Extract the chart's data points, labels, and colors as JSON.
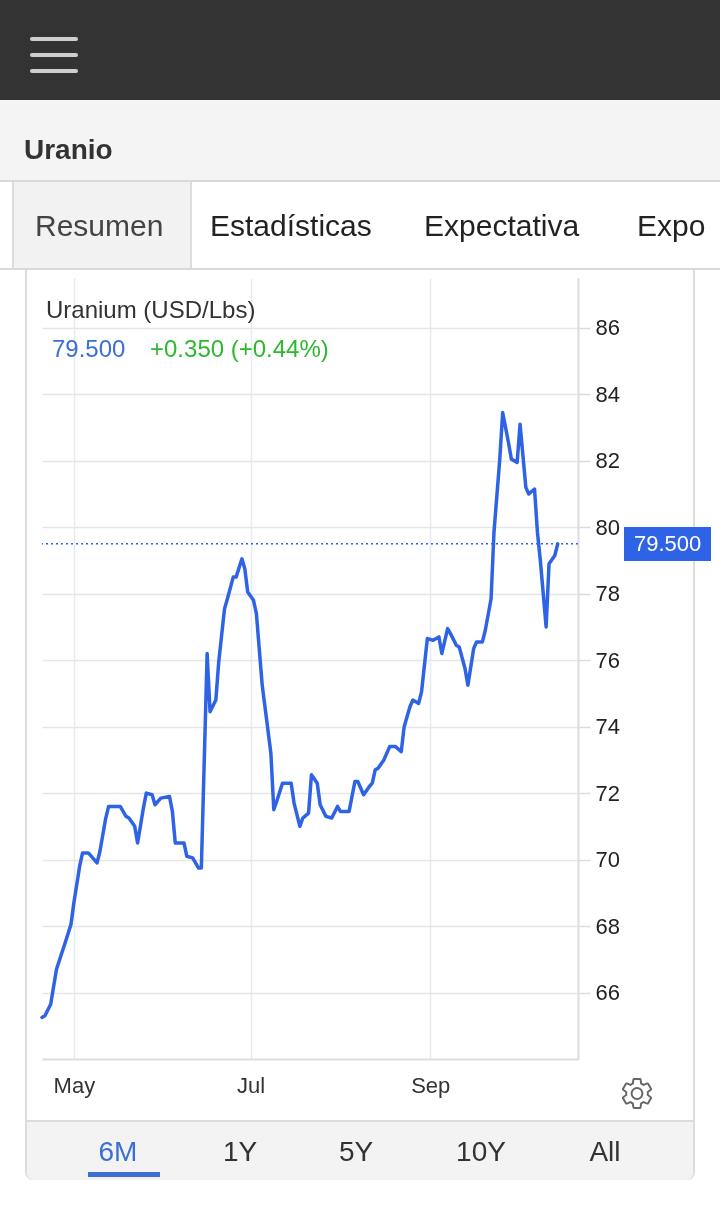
{
  "chart_data": {
    "type": "line",
    "title": "Uranium (USD/Lbs)",
    "annotations": [
      "Uranio",
      "Resumen",
      "Estadísticas",
      "Expectativa",
      "Expo",
      "79.500",
      "+0.350 (+0.44%)",
      "6M",
      "1Y",
      "5Y",
      "10Y",
      "All"
    ],
    "x": [
      "--04-20",
      "--04-21",
      "--04-23",
      "--04-25",
      "--04-28",
      "--04-30",
      "--05-01",
      "--05-03",
      "--05-04",
      "--05-06",
      "--05-09",
      "--05-10",
      "--05-12",
      "--05-13",
      "--05-17",
      "--05-19",
      "--05-20",
      "--05-22",
      "--05-23",
      "--05-25",
      "--05-26",
      "--05-28",
      "--05-29",
      "--05-31",
      "--06-03",
      "--06-04",
      "--06-05",
      "--06-08",
      "--06-09",
      "--06-11",
      "--06-13",
      "--06-14",
      "--06-16",
      "--06-17",
      "--06-19",
      "--06-20",
      "--06-22",
      "--06-23",
      "--06-25",
      "--06-26",
      "--06-28",
      "--06-29",
      "--06-30",
      "--07-02",
      "--07-03",
      "--07-05",
      "--07-08",
      "--07-09",
      "--07-10",
      "--07-12",
      "--07-15",
      "--07-16",
      "--07-18",
      "--07-19",
      "--07-21",
      "--07-22",
      "--07-24",
      "--07-25",
      "--07-27",
      "--07-29",
      "--07-31",
      "--08-01",
      "--08-04",
      "--08-06",
      "--08-07",
      "--08-09",
      "--08-11",
      "--08-12",
      "--08-13",
      "--08-14",
      "--08-16",
      "--08-18",
      "--08-20",
      "--08-22",
      "--08-23",
      "--08-25",
      "--08-26",
      "--08-28",
      "--08-29",
      "--08-31",
      "--09-02",
      "--09-04",
      "--09-05",
      "--09-07",
      "--09-08",
      "--09-10",
      "--09-11",
      "--09-13",
      "--09-14",
      "--09-16",
      "--09-17",
      "--09-19",
      "--09-20",
      "--09-22",
      "--09-23",
      "--09-25",
      "--09-26",
      "--09-28",
      "--09-29",
      "--10-01",
      "--10-02",
      "--10-04",
      "--10-05",
      "--10-07",
      "--10-08",
      "--10-09",
      "--10-11",
      "--10-12",
      "--10-14",
      "--10-15"
    ],
    "series": [
      {
        "color": "#2f63e6",
        "values": [
          65.25,
          65.3,
          65.65,
          66.7,
          67.5,
          68.05,
          68.7,
          69.8,
          70.2,
          70.2,
          69.9,
          70.25,
          71.25,
          71.6,
          71.6,
          71.3,
          71.25,
          71.0,
          70.5,
          71.55,
          72.0,
          71.95,
          71.65,
          71.85,
          71.9,
          71.45,
          70.5,
          70.5,
          70.1,
          70.05,
          69.75,
          69.75,
          76.2,
          74.45,
          74.8,
          75.95,
          77.55,
          77.85,
          78.5,
          78.5,
          79.05,
          78.75,
          78.05,
          77.8,
          77.4,
          75.25,
          73.2,
          71.5,
          71.75,
          72.3,
          72.3,
          71.7,
          71.0,
          71.25,
          71.4,
          72.55,
          72.3,
          71.65,
          71.3,
          71.25,
          71.6,
          71.45,
          71.45,
          72.35,
          72.35,
          71.95,
          72.2,
          72.3,
          72.7,
          72.75,
          73.0,
          73.4,
          73.4,
          73.25,
          74.0,
          74.6,
          74.8,
          74.7,
          75.05,
          76.65,
          76.6,
          76.7,
          76.2,
          76.95,
          76.8,
          76.45,
          76.4,
          75.75,
          75.25,
          76.35,
          76.55,
          76.55,
          76.9,
          77.85,
          79.85,
          82.05,
          83.45,
          82.55,
          82.05,
          81.95,
          83.1,
          81.2,
          81.0,
          81.15,
          79.85,
          79.0,
          77.0,
          78.9,
          79.15,
          79.5
        ]
      }
    ],
    "xlim": [
      "--04-20",
      "--10-22"
    ],
    "xticks": [
      {
        "value": "--05-01",
        "label": "May"
      },
      {
        "value": "--07-01",
        "label": "Jul"
      },
      {
        "value": "--09-01",
        "label": "Sep"
      }
    ],
    "ylim": [
      64,
      87.5
    ],
    "yticks": [
      66,
      68,
      70,
      72,
      74,
      76,
      78,
      80,
      82,
      84,
      86
    ],
    "grid": true,
    "ref_lines": [
      {
        "axis": "y",
        "value": 79.5,
        "label": "79.500",
        "color": "#2f63e6",
        "line_style": "dotted"
      }
    ]
  }
}
